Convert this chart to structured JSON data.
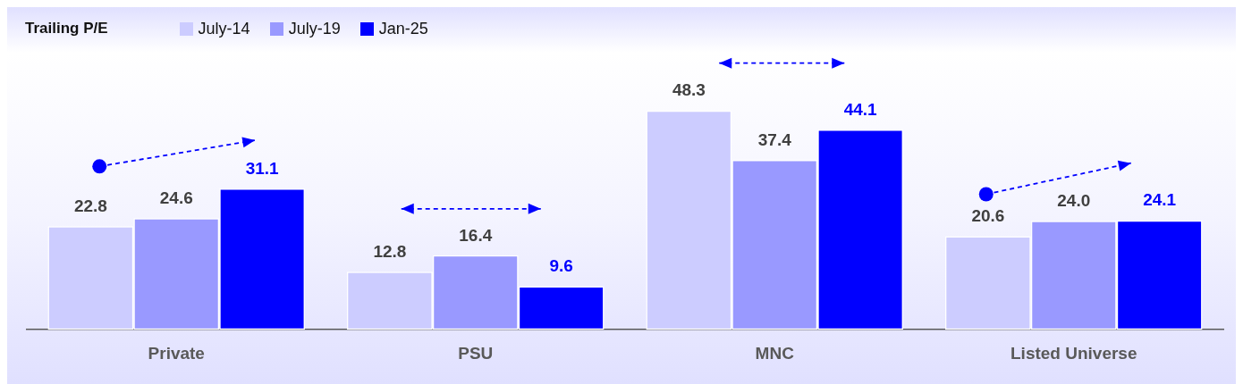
{
  "chart_data": {
    "type": "bar",
    "ylabel": "Trailing P/E",
    "categories": [
      "Private",
      "PSU",
      "MNC",
      "Listed Universe"
    ],
    "series": [
      {
        "name": "July-14",
        "color": "#ccccff",
        "values": [
          22.8,
          12.8,
          48.3,
          20.6
        ],
        "value_labels": [
          "22.8",
          "12.8",
          "48.3",
          "20.6"
        ]
      },
      {
        "name": "July-19",
        "color": "#9999ff",
        "values": [
          24.6,
          16.4,
          37.4,
          24.0
        ],
        "value_labels": [
          "24.6",
          "16.4",
          "37.4",
          "24.0"
        ]
      },
      {
        "name": "Jan-25",
        "color": "#0000ff",
        "values": [
          31.1,
          9.6,
          44.1,
          24.1
        ],
        "value_labels": [
          "31.1",
          "9.6",
          "44.1",
          "24.1"
        ]
      }
    ],
    "legend": "top left",
    "grid": false
  }
}
